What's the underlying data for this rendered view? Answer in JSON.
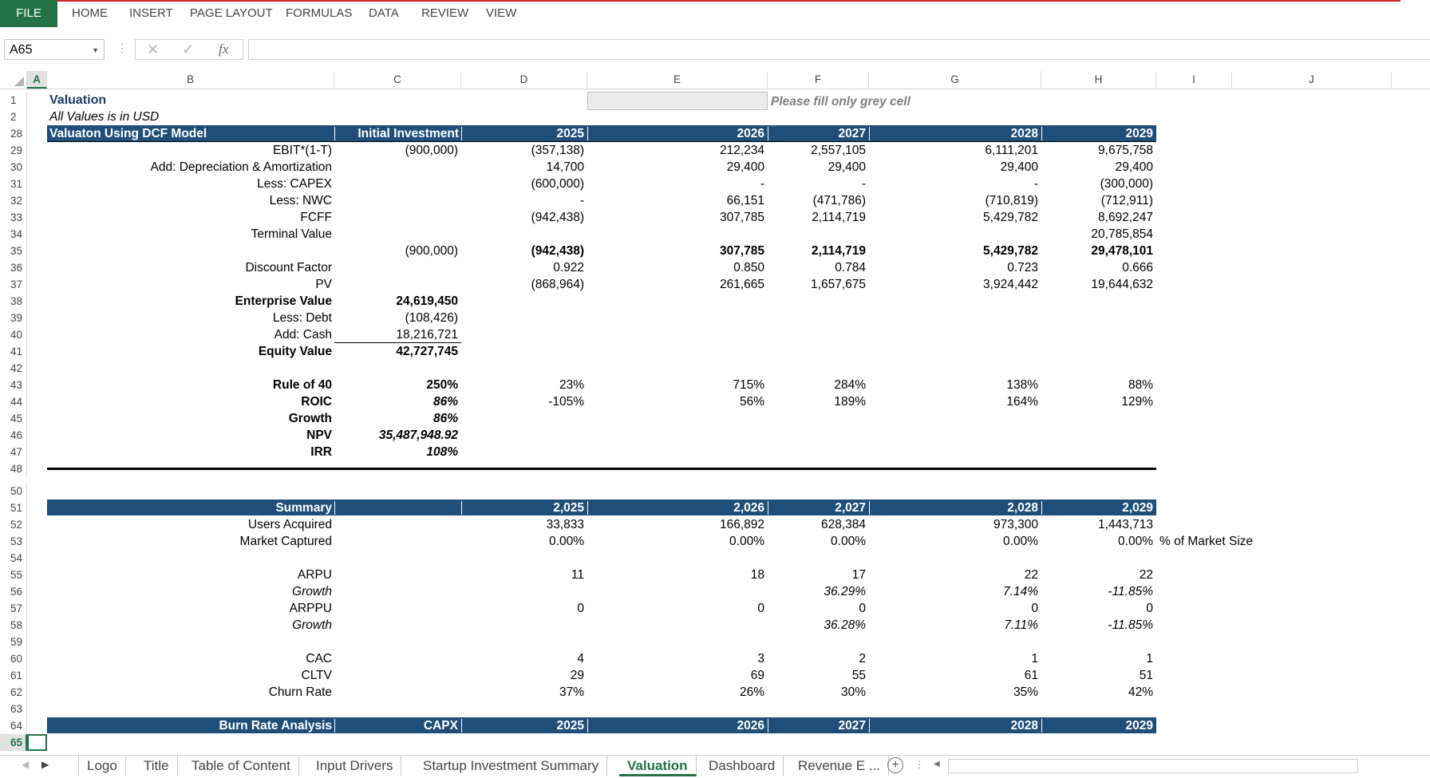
{
  "ribbon": {
    "file": "FILE",
    "tabs": [
      "HOME",
      "INSERT",
      "PAGE LAYOUT",
      "FORMULAS",
      "DATA",
      "REVIEW",
      "VIEW"
    ]
  },
  "formula_bar": {
    "name_box": "A65",
    "fx": "fx",
    "cancel": "✕",
    "enter": "✓",
    "value": ""
  },
  "columns": [
    "A",
    "B",
    "C",
    "D",
    "E",
    "F",
    "G",
    "H",
    "I",
    "J"
  ],
  "sheet": {
    "r1": {
      "num": "1",
      "title": "Valuation",
      "note": "Please fill only grey cell"
    },
    "r2": {
      "num": "2",
      "sub": "All Values is in USD"
    },
    "r28": {
      "num": "28",
      "B": "Valuaton Using DCF Model",
      "C": "Initial Investment",
      "D": "2025",
      "E": "2026",
      "F": "2027",
      "G": "2028",
      "H": "2029"
    },
    "r29": {
      "num": "29",
      "B": "EBIT*(1-T)",
      "C": "(900,000)",
      "D": "(357,138)",
      "E": "212,234",
      "F": "2,557,105",
      "G": "6,111,201",
      "H": "9,675,758"
    },
    "r30": {
      "num": "30",
      "B": "Add: Depreciation & Amortization",
      "D": "14,700",
      "E": "29,400",
      "F": "29,400",
      "G": "29,400",
      "H": "29,400"
    },
    "r31": {
      "num": "31",
      "B": "Less: CAPEX",
      "D": "(600,000)",
      "E": "-",
      "F": "-",
      "G": "-",
      "H": "(300,000)"
    },
    "r32": {
      "num": "32",
      "B": "Less: NWC",
      "D": "-",
      "E": "66,151",
      "F": "(471,786)",
      "G": "(710,819)",
      "H": "(712,911)"
    },
    "r33": {
      "num": "33",
      "B": "FCFF",
      "D": "(942,438)",
      "E": "307,785",
      "F": "2,114,719",
      "G": "5,429,782",
      "H": "8,692,247"
    },
    "r34": {
      "num": "34",
      "B": "Terminal Value",
      "H": "20,785,854"
    },
    "r35": {
      "num": "35",
      "C": "(900,000)",
      "D": "(942,438)",
      "E": "307,785",
      "F": "2,114,719",
      "G": "5,429,782",
      "H": "29,478,101"
    },
    "r36": {
      "num": "36",
      "B": "Discount Factor",
      "D": "0.922",
      "E": "0.850",
      "F": "0.784",
      "G": "0.723",
      "H": "0.666"
    },
    "r37": {
      "num": "37",
      "B": "PV",
      "D": "(868,964)",
      "E": "261,665",
      "F": "1,657,675",
      "G": "3,924,442",
      "H": "19,644,632"
    },
    "r38": {
      "num": "38",
      "B": "Enterprise Value",
      "C": "24,619,450"
    },
    "r39": {
      "num": "39",
      "B": "Less: Debt",
      "C": "(108,426)"
    },
    "r40": {
      "num": "40",
      "B": "Add: Cash",
      "C": "18,216,721"
    },
    "r41": {
      "num": "41",
      "B": "Equity Value",
      "C": "42,727,745"
    },
    "r42": {
      "num": "42"
    },
    "r43": {
      "num": "43",
      "B": "Rule of 40",
      "C": "250%",
      "D": "23%",
      "E": "715%",
      "F": "284%",
      "G": "138%",
      "H": "88%"
    },
    "r44": {
      "num": "44",
      "B": "ROIC",
      "C": "86%",
      "D": "-105%",
      "E": "56%",
      "F": "189%",
      "G": "164%",
      "H": "129%"
    },
    "r45": {
      "num": "45",
      "B": "Growth",
      "C": "86%"
    },
    "r46": {
      "num": "46",
      "B": "NPV",
      "C": "35,487,948.92"
    },
    "r47": {
      "num": "47",
      "B": "IRR",
      "C": "108%"
    },
    "r48": {
      "num": "48"
    },
    "r50": {
      "num": "50"
    },
    "r51": {
      "num": "51",
      "B": "Summary",
      "D": "2,025",
      "E": "2,026",
      "F": "2,027",
      "G": "2,028",
      "H": "2,029"
    },
    "r52": {
      "num": "52",
      "B": "Users Acquired",
      "D": "33,833",
      "E": "166,892",
      "F": "628,384",
      "G": "973,300",
      "H": "1,443,713"
    },
    "r53": {
      "num": "53",
      "B": "Market Captured",
      "D": "0.00%",
      "E": "0.00%",
      "F": "0.00%",
      "G": "0.00%",
      "H": "0.00%",
      "I": "% of Market Size"
    },
    "r54": {
      "num": "54"
    },
    "r55": {
      "num": "55",
      "B": "ARPU",
      "D": "11",
      "E": "18",
      "F": "17",
      "G": "22",
      "H": "22"
    },
    "r56": {
      "num": "56",
      "B": "Growth",
      "F": "36.29%",
      "G": "7.14%",
      "H": "-11.85%"
    },
    "r57": {
      "num": "57",
      "B": "ARPPU",
      "D": "0",
      "E": "0",
      "F": "0",
      "G": "0",
      "H": "0"
    },
    "r58": {
      "num": "58",
      "B": "Growth",
      "F": "36.28%",
      "G": "7.11%",
      "H": "-11.85%"
    },
    "r59": {
      "num": "59"
    },
    "r60": {
      "num": "60",
      "B": "CAC",
      "D": "4",
      "E": "3",
      "F": "2",
      "G": "1",
      "H": "1"
    },
    "r61": {
      "num": "61",
      "B": "CLTV",
      "D": "29",
      "E": "69",
      "F": "55",
      "G": "61",
      "H": "51"
    },
    "r62": {
      "num": "62",
      "B": "Churn Rate",
      "D": "37%",
      "E": "26%",
      "F": "30%",
      "G": "35%",
      "H": "42%"
    },
    "r63": {
      "num": "63"
    },
    "r64": {
      "num": "64",
      "B": "Burn Rate Analysis",
      "C": "CAPX",
      "D": "2025",
      "E": "2026",
      "F": "2027",
      "G": "2028",
      "H": "2029"
    },
    "r65": {
      "num": "65"
    }
  },
  "sheet_tabs": [
    "Logo",
    "Title",
    "Table of Content",
    "Input Drivers",
    "Startup Investment Summary",
    "Valuation",
    "Dashboard",
    "Revenue E ..."
  ],
  "active_sheet": "Valuation",
  "colors": {
    "excel_green": "#217346",
    "header_band": "#1f4e79",
    "ribbon_accent": "#d4232a"
  }
}
